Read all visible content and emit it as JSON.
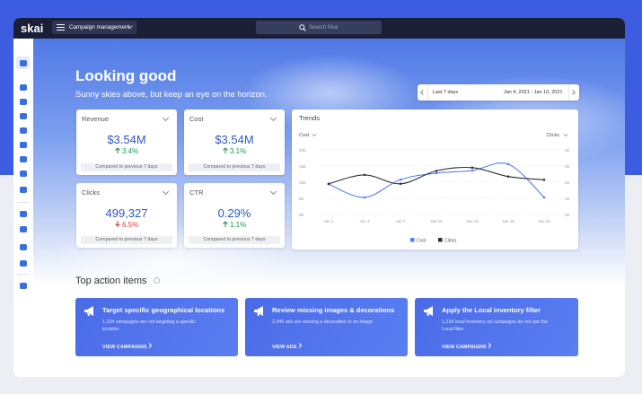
{
  "nav": {
    "logo": "skai",
    "menu": "Campaign management",
    "search": "Search Skai"
  },
  "header": {
    "title": "Looking good",
    "subtitle": "Sunny skies above, but keep an eye on the horizon."
  },
  "date_range": {
    "preset": "Last 7 days",
    "range": "Jan 4, 2021 - Jan 10, 2021"
  },
  "metrics": [
    {
      "label": "Revenue",
      "value": "$3.54M",
      "change": "3.4%",
      "comparison": "Compared to previous 7 days"
    },
    {
      "label": "Cost",
      "value": "$3.54M",
      "change": "3.1%",
      "comparison": "Compared to previous 7 days"
    },
    {
      "label": "Clicks",
      "value": "499,327",
      "change": "6.5%",
      "comparison": "Compared to previous 7 days"
    },
    {
      "label": "CTR",
      "value": "0.29%",
      "change": "1.1%",
      "comparison": "Compared to previous 7 days"
    }
  ],
  "trends": {
    "title": "Trends",
    "left_selector": "Cost",
    "right_selector": "Clicks",
    "categories": [
      "Jun 1",
      "Jun 4",
      "Jun 7",
      "Jun 10",
      "Jun 13",
      "Jun 16",
      "Jun 19"
    ],
    "series": [
      {
        "name": "Cost",
        "color": "#5b7ff0",
        "values": [
          9400,
          5300,
          10800,
          12800,
          13600,
          15600,
          5300
        ]
      },
      {
        "name": "Clicks",
        "color": "#2d2f3a",
        "axis": "y2",
        "values": [
          1900,
          2450,
          1900,
          2700,
          2900,
          2350,
          2150
        ]
      }
    ],
    "ylim": [
      0,
      20000
    ],
    "yticks": [
      {
        "value": 0,
        "label": "0K"
      },
      {
        "value": 5000,
        "label": "5K"
      },
      {
        "value": 10000,
        "label": "10K"
      },
      {
        "value": 15000,
        "label": "15K"
      },
      {
        "value": 20000,
        "label": "20K"
      }
    ],
    "y2lim": [
      0,
      4000
    ],
    "y2ticks": [
      {
        "value": 0,
        "label": "0K"
      },
      {
        "value": 1000,
        "label": "1K"
      },
      {
        "value": 2000,
        "label": "2K"
      },
      {
        "value": 3000,
        "label": "3K"
      },
      {
        "value": 4000,
        "label": "4K"
      }
    ]
  },
  "action_items": {
    "title": "Top action items",
    "items": [
      {
        "title": "Target specific geographical locations",
        "description": "1,234 campaigns are not targeting a specific location.",
        "link": "VIEW CAMPAIGNS"
      },
      {
        "title": "Review missing images & decorations",
        "description": "2,345 ads are missing a decoration or an image",
        "link": "VIEW ADS"
      },
      {
        "title": "Apply the Local inventory filter",
        "description": "1,234 local inventory ad campaigns do not use the Local filter.",
        "link": "VIEW CAMPAIGNS"
      }
    ]
  }
}
